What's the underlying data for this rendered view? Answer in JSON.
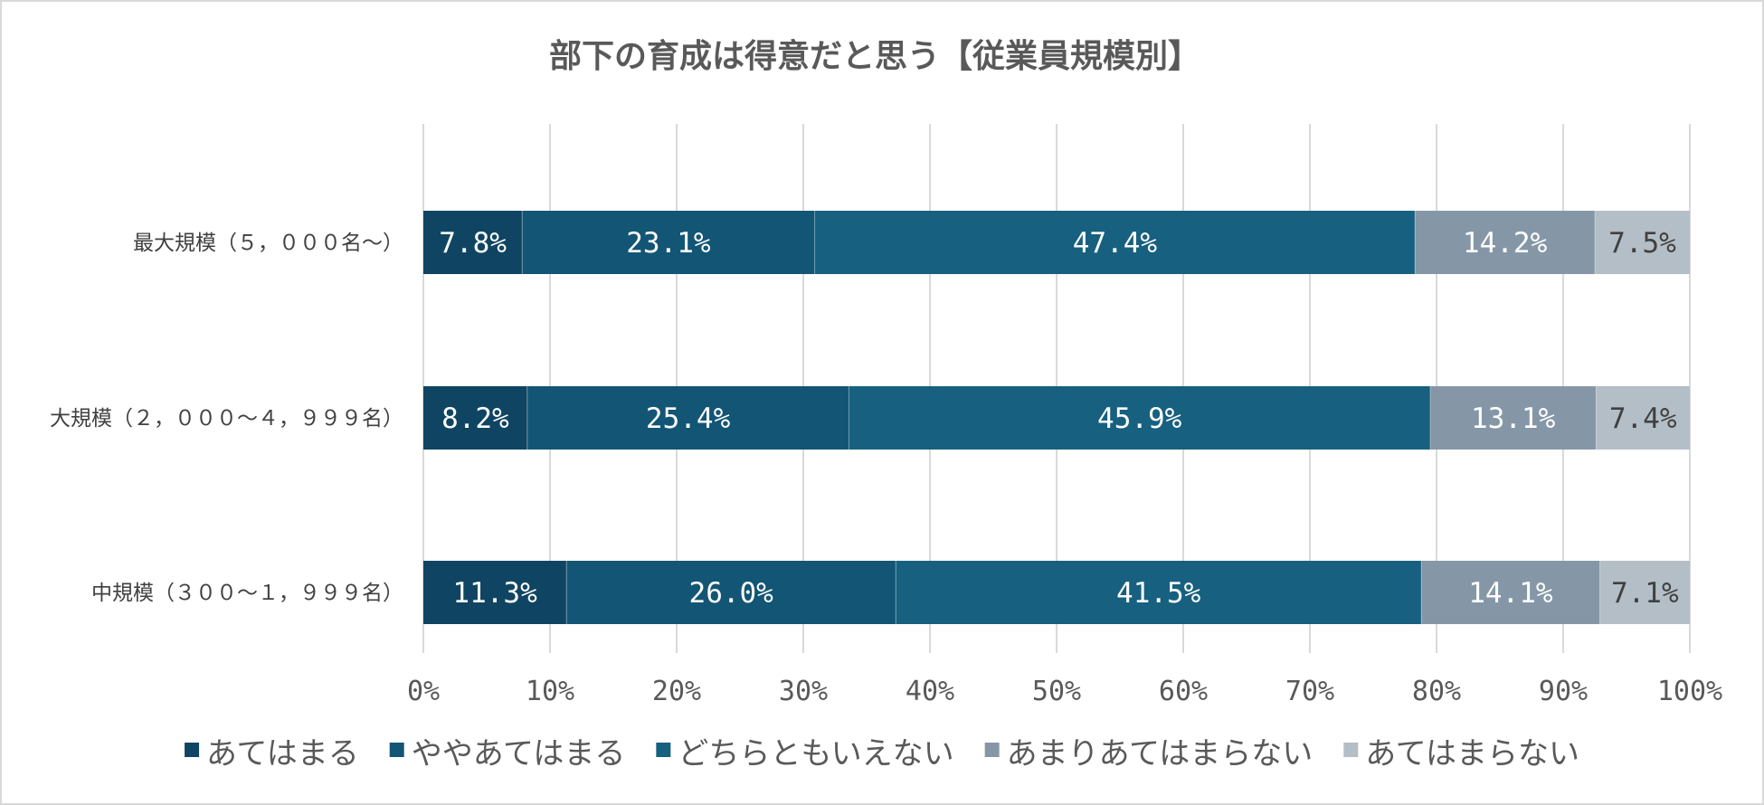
{
  "chart_data": {
    "type": "bar",
    "orientation": "horizontal",
    "stacked": true,
    "title": "部下の育成は得意だと思う【従業員規模別】",
    "categories": [
      "最大規模（５，０００名～）",
      "大規模（２，０００～４，９９９名）",
      "中規模（３００～１，９９９名）"
    ],
    "series": [
      {
        "name": "あてはまる",
        "color": "#0f4562",
        "text_color": "#ffffff",
        "values": [
          7.8,
          8.2,
          11.3
        ],
        "labels": [
          "7.8%",
          "8.2%",
          "11.3%"
        ]
      },
      {
        "name": "ややあてはまる",
        "color": "#135574",
        "text_color": "#ffffff",
        "values": [
          23.1,
          25.4,
          26.0
        ],
        "labels": [
          "23.1%",
          "25.4%",
          "26.0%"
        ]
      },
      {
        "name": "どちらともいえない",
        "color": "#17607f",
        "text_color": "#ffffff",
        "values": [
          47.4,
          45.9,
          41.5
        ],
        "labels": [
          "47.4%",
          "45.9%",
          "41.5%"
        ]
      },
      {
        "name": "あまりあてはまらない",
        "color": "#8597a7",
        "text_color": "#ffffff",
        "values": [
          14.2,
          13.1,
          14.1
        ],
        "labels": [
          "14.2%",
          "13.1%",
          "14.1%"
        ]
      },
      {
        "name": "あてはまらない",
        "color": "#b4bec7",
        "text_color": "#404040",
        "values": [
          7.5,
          7.4,
          7.1
        ],
        "labels": [
          "7.5%",
          "7.4%",
          "7.1%"
        ]
      }
    ],
    "x_ticks": [
      "0%",
      "10%",
      "20%",
      "30%",
      "40%",
      "50%",
      "60%",
      "70%",
      "80%",
      "90%",
      "100%"
    ],
    "xlim": [
      0,
      100
    ],
    "grid": true,
    "legend": "bottom"
  }
}
